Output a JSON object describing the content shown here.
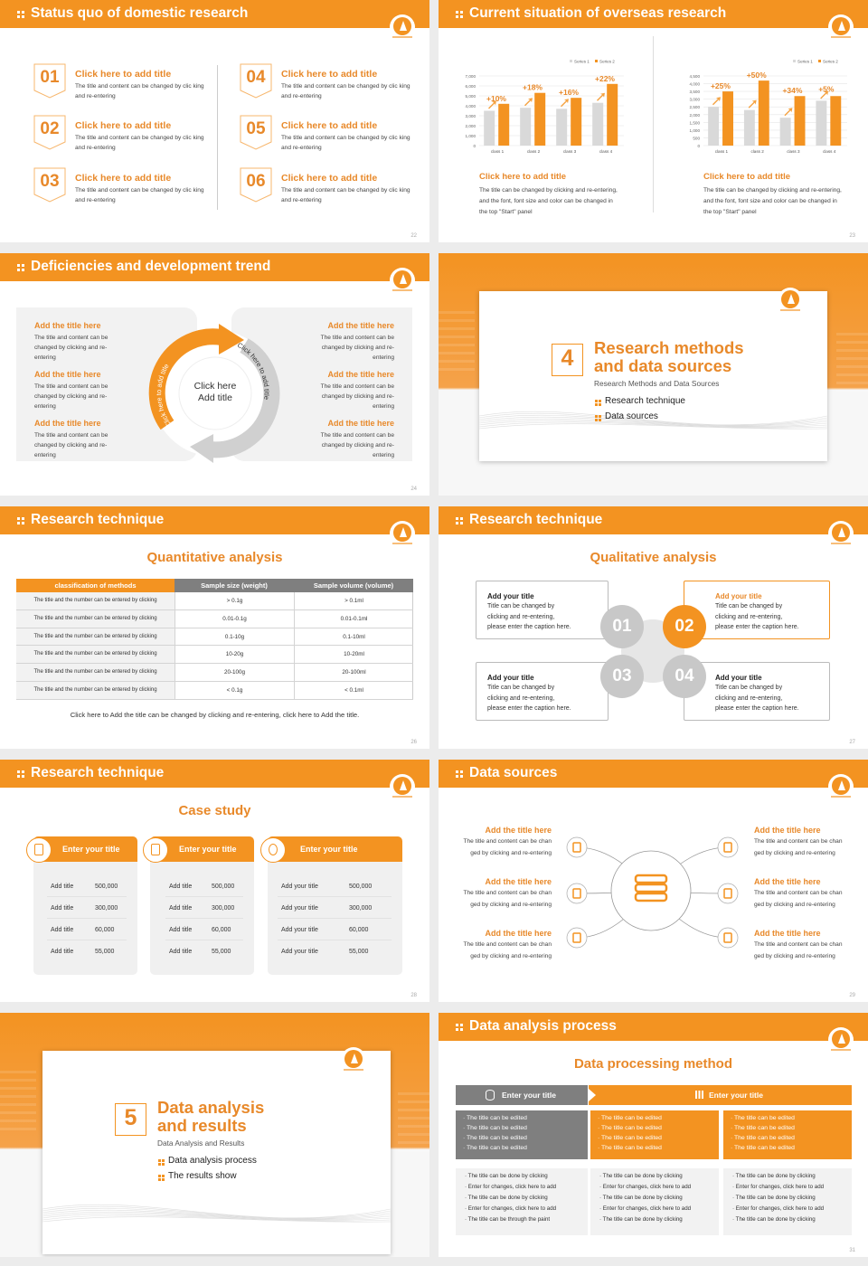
{
  "colors": {
    "accent": "#F39321",
    "gray_header": "#7f7f7f",
    "panel": "#f2f2f2"
  },
  "slides": [
    {
      "type": "numbered-list",
      "title": "Status quo of domestic research",
      "page": "22",
      "items": [
        {
          "num": "01",
          "title": "Click here to add title",
          "desc": "The title and content can be changed by clic king and re-entering"
        },
        {
          "num": "02",
          "title": "Click here to add title",
          "desc": "The title and content can be changed by clic king and re-entering"
        },
        {
          "num": "03",
          "title": "Click here to add title",
          "desc": "The title and content can be changed by clic king and re-entering"
        },
        {
          "num": "04",
          "title": "Click here to add title",
          "desc": "The title and content can be changed by clic king and re-entering"
        },
        {
          "num": "05",
          "title": "Click here to add title",
          "desc": "The title and content can be changed by clic king and re-entering"
        },
        {
          "num": "06",
          "title": "Click here to add title",
          "desc": "The title and content can be changed by clic king and re-entering"
        }
      ]
    },
    {
      "type": "charts",
      "title": "Current situation of overseas research",
      "page": "23",
      "panels": [
        {
          "title": "Click here to add title",
          "desc": "The title can be changed by clicking and re-entering, and the font, font size and color can be changed in the top \"Start\" panel"
        },
        {
          "title": "Click here to add title",
          "desc": "The title can be changed by clicking and re-entering, and the font, font size and color can be changed in the top \"Start\" panel"
        }
      ]
    },
    {
      "type": "cycle",
      "title": "Deficiencies and development trend",
      "page": "24",
      "center": [
        "Click here",
        "Add title"
      ],
      "arc_orange": "Click here to add title",
      "arc_gray": "Click here to add title",
      "left": [
        {
          "title": "Add the title here",
          "desc": "The title and content can be changed by clicking and re-entering"
        },
        {
          "title": "Add the title here",
          "desc": "The title and content can be changed by clicking and re-entering"
        },
        {
          "title": "Add the title here",
          "desc": "The title and content can be changed by clicking and re-entering"
        }
      ],
      "right": [
        {
          "title": "Add the title here",
          "desc": "The title and content can be changed by clicking and re-entering"
        },
        {
          "title": "Add the title here",
          "desc": "The title and content can be changed by clicking and re-entering"
        },
        {
          "title": "Add the title here",
          "desc": "The title and content can be changed by clicking and re-entering"
        }
      ]
    },
    {
      "type": "section",
      "page": "25",
      "num": "4",
      "title": [
        "Research methods",
        "and data sources"
      ],
      "subtitle": "Research Methods and Data Sources",
      "bullets": [
        "Research technique",
        "Data sources"
      ]
    },
    {
      "type": "table",
      "title": "Research technique",
      "page": "26",
      "heading": "Quantitative analysis",
      "columns": [
        "classification of methods",
        "Sample size (weight)",
        "Sample volume (volume)"
      ],
      "rows": [
        [
          "The title and the number can be entered by clicking",
          "> 0.1g",
          "> 0.1ml"
        ],
        [
          "The title and the number can be entered by clicking",
          "0.01-0.1g",
          "0.01-0.1ml"
        ],
        [
          "The title and the number can be entered by clicking",
          "0.1-10g",
          "0.1-10ml"
        ],
        [
          "The title and the number can be entered by clicking",
          "10-20g",
          "10-20ml"
        ],
        [
          "The title and the number can be entered by clicking",
          "20-100g",
          "20-100ml"
        ],
        [
          "The title and the number can be entered by clicking",
          "< 0.1g",
          "< 0.1ml"
        ]
      ],
      "caption": "Click here to Add the title can be changed by clicking and re-entering, click here to Add the title."
    },
    {
      "type": "quad",
      "title": "Research technique",
      "page": "27",
      "heading": "Qualitative analysis",
      "active": 1,
      "items": [
        {
          "num": "01",
          "title": "Add your title",
          "desc": [
            "Title can be changed by",
            "clicking and re-entering,",
            "please enter the caption here."
          ]
        },
        {
          "num": "02",
          "title": "Add your title",
          "desc": [
            "Title can be changed by",
            "clicking and re-entering,",
            "please enter the caption here."
          ]
        },
        {
          "num": "03",
          "title": "Add your title",
          "desc": [
            "Title can be changed by",
            "clicking and re-entering,",
            "please enter the caption here."
          ]
        },
        {
          "num": "04",
          "title": "Add your title",
          "desc": [
            "Title can be changed by",
            "clicking and re-entering,",
            "please enter the caption here."
          ]
        }
      ]
    },
    {
      "type": "cards",
      "title": "Research technique",
      "page": "28",
      "heading": "Case study",
      "cards": [
        {
          "icon": "mobile-profile-icon",
          "title": "Enter your title",
          "rows": [
            [
              "Add title",
              "500,000"
            ],
            [
              "Add title",
              "300,000"
            ],
            [
              "Add title",
              "60,000"
            ],
            [
              "Add title",
              "55,000"
            ]
          ]
        },
        {
          "icon": "qr-scan-icon",
          "title": "Enter your title",
          "rows": [
            [
              "Add title",
              "500,000"
            ],
            [
              "Add title",
              "300,000"
            ],
            [
              "Add title",
              "60,000"
            ],
            [
              "Add title",
              "55,000"
            ]
          ]
        },
        {
          "icon": "chat-bubbles-icon",
          "title": "Enter your title",
          "rows": [
            [
              "Add your title",
              "500,000"
            ],
            [
              "Add your title",
              "300,000"
            ],
            [
              "Add your title",
              "60,000"
            ],
            [
              "Add your title",
              "55,000"
            ]
          ]
        }
      ]
    },
    {
      "type": "hub",
      "title": "Data sources",
      "page": "29",
      "center_icon": "server-icon",
      "left": [
        {
          "icon": "people-icon",
          "title": "Add the title here",
          "desc": [
            "The title and content can be chan",
            "ged by clicking and re-entering"
          ]
        },
        {
          "icon": "box-icon",
          "title": "Add the title here",
          "desc": [
            "The title and content can be chan",
            "ged by clicking and re-entering"
          ]
        },
        {
          "icon": "mobile-icon",
          "title": "Add the title here",
          "desc": [
            "The title and content can be chan",
            "ged by clicking and re-entering"
          ]
        }
      ],
      "right": [
        {
          "icon": "chat-icon",
          "title": "Add the title here",
          "desc": [
            "The title and content can be chan",
            "ged by clicking and re-entering"
          ]
        },
        {
          "icon": "hand-coin-icon",
          "title": "Add the title here",
          "desc": [
            "The title and content can be chan",
            "ged by clicking and re-entering"
          ]
        },
        {
          "icon": "building-icon",
          "title": "Add the title here",
          "desc": [
            "The title and content can be chan",
            "ged by clicking and re-entering"
          ]
        }
      ]
    },
    {
      "type": "section",
      "page": "30",
      "num": "5",
      "title": [
        "Data analysis",
        "and results"
      ],
      "subtitle": "Data Analysis and Results",
      "bullets": [
        "Data analysis process",
        "The results show"
      ]
    },
    {
      "type": "process",
      "title": "Data analysis process",
      "page": "31",
      "heading": "Data processing method",
      "head_left": "Enter your title",
      "head_right": "Enter your title",
      "mid": [
        [
          "The title can be edited",
          "The title can be edited",
          "The title can be edited",
          "The title can be edited"
        ],
        [
          "The title can be edited",
          "The title can be edited",
          "The title can be edited",
          "The title can be edited"
        ],
        [
          "The title can be edited",
          "The title can be edited",
          "The title can be edited",
          "The title can be edited"
        ]
      ],
      "bottom": [
        [
          "The title can be done by clicking",
          "Enter for changes, click here to add",
          "The title can be done by clicking",
          "Enter for changes, click here to add",
          "The title can be through the paint"
        ],
        [
          "The title can be done by clicking",
          "Enter for changes, click here to add",
          "The title can be done by clicking",
          "Enter for changes, click here to add",
          "The title can be done by clicking"
        ],
        [
          "The title can be done by clicking",
          "Enter for changes, click here to add",
          "The title can be done by clicking",
          "Enter for changes, click here to add",
          "The title can be done by clicking"
        ]
      ]
    }
  ],
  "chart_data": [
    {
      "type": "bar",
      "categories": [
        "class 1",
        "class 2",
        "class 3",
        "class 4"
      ],
      "ylim": [
        0,
        7000
      ],
      "yticks": [
        "0",
        "1,000",
        "2,000",
        "3,000",
        "4,000",
        "5,000",
        "6,000",
        "7,000"
      ],
      "legend": "top-right",
      "grid": true,
      "series": [
        {
          "name": "Series 1",
          "values": [
            3500,
            3800,
            3700,
            4300
          ],
          "color": "#d9d9d9"
        },
        {
          "name": "Series 2",
          "values": [
            4200,
            5300,
            4800,
            6200
          ],
          "color": "#F39321"
        }
      ],
      "annotations": [
        "+10%",
        "+18%",
        "+16%",
        "+22%"
      ]
    },
    {
      "type": "bar",
      "categories": [
        "class 1",
        "class 2",
        "class 3",
        "class 4"
      ],
      "ylim": [
        0,
        4500
      ],
      "yticks": [
        "0",
        "500",
        "1,000",
        "1,500",
        "2,000",
        "2,500",
        "3,000",
        "3,500",
        "4,000",
        "4,500"
      ],
      "legend": "top-right",
      "grid": true,
      "series": [
        {
          "name": "Series 1",
          "values": [
            2500,
            2300,
            1800,
            2900
          ],
          "color": "#d9d9d9"
        },
        {
          "name": "Series 2",
          "values": [
            3500,
            4200,
            3200,
            3200
          ],
          "color": "#F39321"
        }
      ],
      "annotations": [
        "+25%",
        "+50%",
        "+34%",
        "+5%"
      ]
    }
  ]
}
